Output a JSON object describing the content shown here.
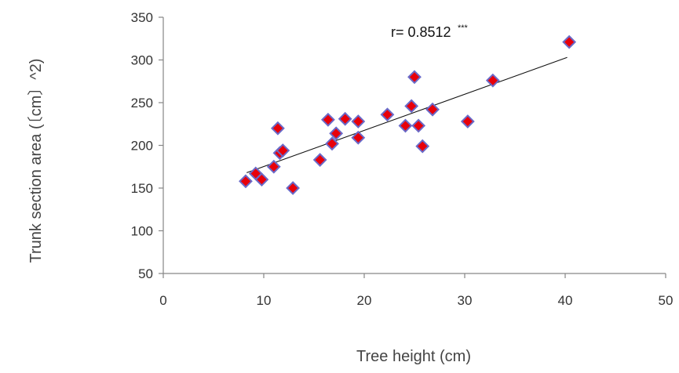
{
  "chart_data": {
    "type": "scatter",
    "title": "",
    "xlabel": "Tree height  (cm)",
    "ylabel": "Trunk section area (〔cm〕^2)",
    "xlim": [
      0,
      50
    ],
    "ylim": [
      50,
      350
    ],
    "xticks": [
      0,
      10,
      20,
      30,
      40,
      50
    ],
    "yticks": [
      50,
      100,
      150,
      200,
      250,
      300,
      350
    ],
    "grid": false,
    "legend": "none",
    "annotation": {
      "text": "r= 0.8512",
      "superscript": "***"
    },
    "marker": {
      "shape": "diamond",
      "fill": "#e8000a",
      "stroke": "#6a6ac8"
    },
    "trendline": {
      "color": "#111111",
      "x_range": [
        8.3,
        40.2
      ],
      "y_range": [
        168,
        303
      ]
    },
    "series": [
      {
        "points": [
          {
            "x": 8.2,
            "y": 158
          },
          {
            "x": 9.2,
            "y": 167
          },
          {
            "x": 9.8,
            "y": 160
          },
          {
            "x": 11.0,
            "y": 175
          },
          {
            "x": 11.4,
            "y": 220
          },
          {
            "x": 11.6,
            "y": 191
          },
          {
            "x": 11.9,
            "y": 194
          },
          {
            "x": 12.9,
            "y": 150
          },
          {
            "x": 15.6,
            "y": 183
          },
          {
            "x": 16.4,
            "y": 230
          },
          {
            "x": 16.8,
            "y": 202
          },
          {
            "x": 17.2,
            "y": 214
          },
          {
            "x": 18.1,
            "y": 231
          },
          {
            "x": 19.4,
            "y": 228
          },
          {
            "x": 19.4,
            "y": 209
          },
          {
            "x": 22.3,
            "y": 236
          },
          {
            "x": 24.1,
            "y": 223
          },
          {
            "x": 24.7,
            "y": 246
          },
          {
            "x": 25.0,
            "y": 280
          },
          {
            "x": 25.4,
            "y": 223
          },
          {
            "x": 25.8,
            "y": 199
          },
          {
            "x": 26.8,
            "y": 242
          },
          {
            "x": 30.3,
            "y": 228
          },
          {
            "x": 32.8,
            "y": 276
          },
          {
            "x": 40.4,
            "y": 321
          }
        ]
      }
    ]
  }
}
